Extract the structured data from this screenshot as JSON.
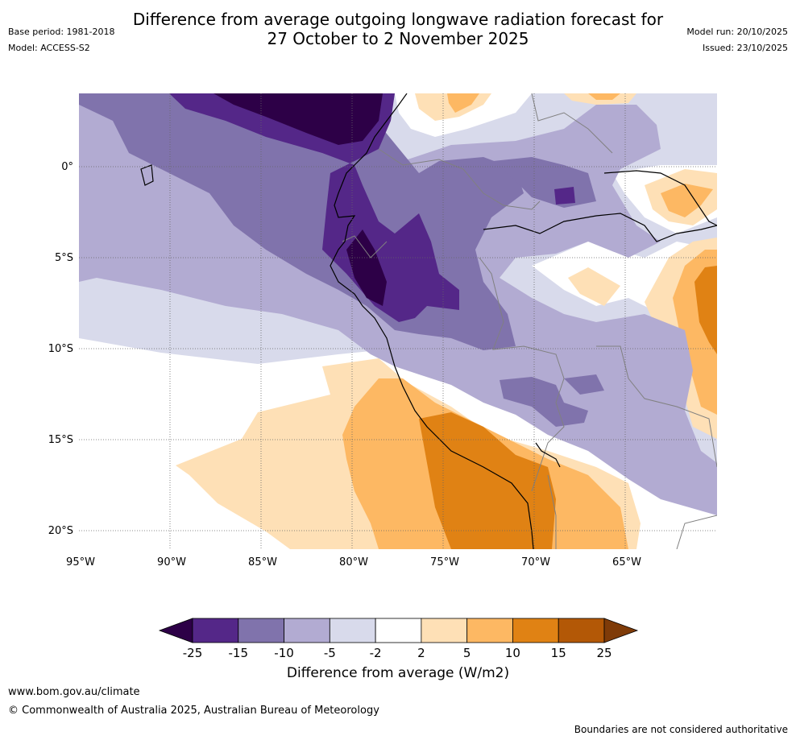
{
  "header": {
    "title_line1": "Difference from average outgoing longwave radiation forecast for",
    "title_line2": "27 October to 2 November 2025",
    "base_period": "Base period: 1981-2018",
    "model": "Model: ACCESS-S2",
    "model_run": "Model run: 20/10/2025",
    "issued": "Issued: 23/10/2025"
  },
  "map": {
    "lon_range": [
      -95,
      -60
    ],
    "lat_range": [
      -21,
      4
    ],
    "lon_ticks": [
      "95°W",
      "90°W",
      "85°W",
      "80°W",
      "75°W",
      "70°W",
      "65°W"
    ],
    "lat_ticks": [
      "0°",
      "5°S",
      "10°S",
      "15°S",
      "20°S"
    ],
    "gridlines": true
  },
  "colorbar": {
    "title": "Difference from average (W/m2)",
    "ticks": [
      "-25",
      "-15",
      "-10",
      "-5",
      "-2",
      "2",
      "5",
      "10",
      "15",
      "25"
    ],
    "colors": [
      "#2d0047",
      "#542788",
      "#8073ac",
      "#b2abd2",
      "#d8daeb",
      "#ffffff",
      "#fee0b6",
      "#fdb863",
      "#e08214",
      "#b35806",
      "#7f3b08"
    ]
  },
  "footer": {
    "url": "www.bom.gov.au/climate",
    "copyright": "© Commonwealth of Australia 2025, Australian Bureau of Meteorology",
    "disclaimer": "Boundaries are not considered authoritative"
  }
}
